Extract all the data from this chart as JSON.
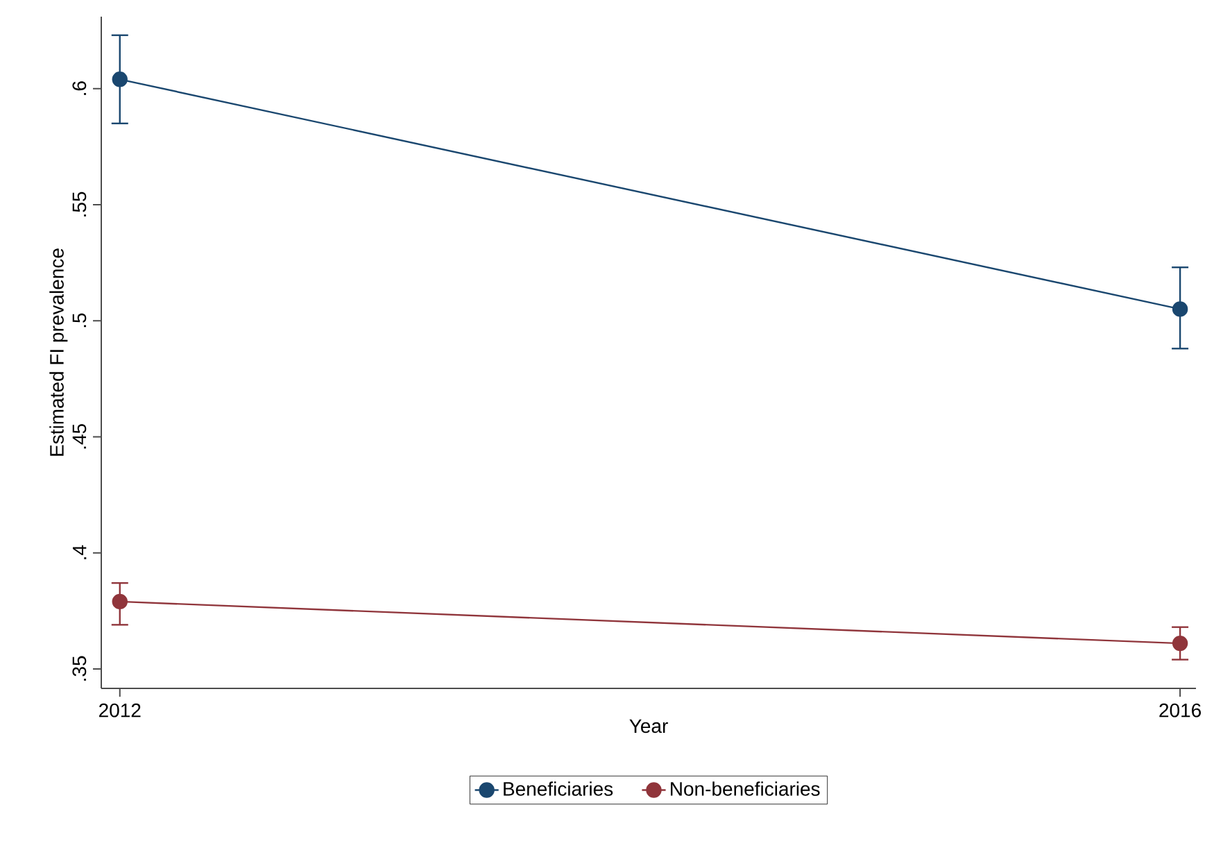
{
  "chart_data": {
    "type": "line",
    "xlabel": "Year",
    "ylabel": "Estimated FI prevalence",
    "x": [
      2012,
      2016
    ],
    "series": [
      {
        "name": "Beneficiaries",
        "color": "#1a476f",
        "values": [
          0.604,
          0.505
        ],
        "errors": [
          [
            0.585,
            0.623
          ],
          [
            0.488,
            0.523
          ]
        ]
      },
      {
        "name": "Non-beneficiaries",
        "color": "#90353b",
        "values": [
          0.379,
          0.361
        ],
        "errors": [
          [
            0.369,
            0.387
          ],
          [
            0.354,
            0.368
          ]
        ]
      }
    ],
    "xlim": [
      2011.93,
      2016.06
    ],
    "ylim": [
      0.3416,
      0.631
    ],
    "xticks": [
      2012,
      2016
    ],
    "yticks": [
      {
        "value": 0.35,
        "label": ".35"
      },
      {
        "value": 0.4,
        "label": ".4"
      },
      {
        "value": 0.45,
        "label": ".45"
      },
      {
        "value": 0.5,
        "label": ".5"
      },
      {
        "value": 0.55,
        "label": ".55"
      },
      {
        "value": 0.6,
        "label": ".6"
      }
    ],
    "grid": false,
    "legend": "bottom",
    "marker": "circle",
    "line_style": "solid"
  }
}
